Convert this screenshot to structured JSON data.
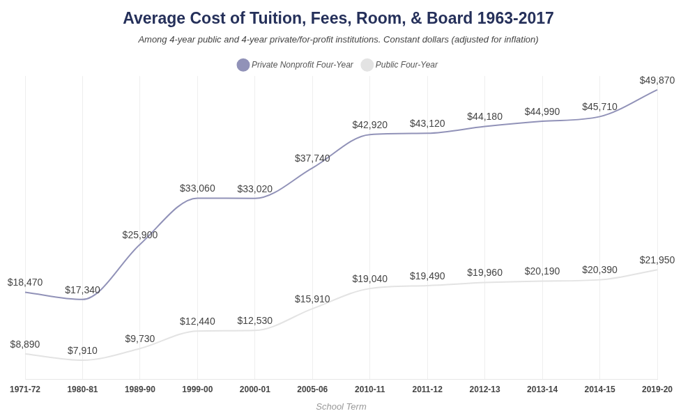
{
  "chart_data": {
    "type": "line",
    "title": "Average Cost of Tuition, Fees, Room, & Board 1963-2017",
    "subtitle": "Among 4-year public and 4-year private/for-profit institutions. Constant dollars (adjusted for inflation)",
    "x_label": "School Term",
    "categories": [
      "1971-72",
      "1980-81",
      "1989-90",
      "1999-00",
      "2000-01",
      "2005-06",
      "2010-11",
      "2011-12",
      "2012-13",
      "2013-14",
      "2014-15",
      "2019-20"
    ],
    "series": [
      {
        "name": "Private Nonprofit Four-Year",
        "color": "#9192b8",
        "values": [
          18470,
          17340,
          25900,
          33060,
          33020,
          37740,
          42920,
          43120,
          44180,
          44990,
          45710,
          49870
        ],
        "value_labels": [
          "$18,470",
          "$17,340",
          "$25,900",
          "$33,060",
          "$33,020",
          "$37,740",
          "$42,920",
          "$43,120",
          "$44,180",
          "$44,990",
          "$45,710",
          "$49,870"
        ]
      },
      {
        "name": "Public Four-Year",
        "color": "#e3e3e3",
        "values": [
          8890,
          7910,
          9730,
          12440,
          12530,
          15910,
          19040,
          19490,
          19960,
          20190,
          20390,
          21950
        ],
        "value_labels": [
          "$8,890",
          "$7,910",
          "$9,730",
          "$12,440",
          "$12,530",
          "$15,910",
          "$19,040",
          "$19,490",
          "$19,960",
          "$20,190",
          "$20,390",
          "$21,950"
        ]
      }
    ],
    "ylim": [
      5000,
      52000
    ],
    "grid": true,
    "legend": "top",
    "data_labels": true,
    "tick_labels": "x"
  }
}
